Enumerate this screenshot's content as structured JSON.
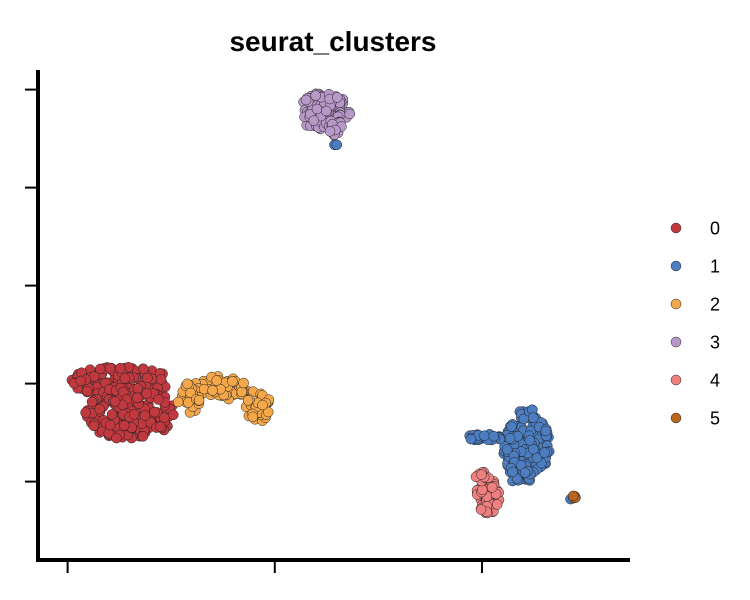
{
  "chart_data": {
    "type": "scatter",
    "title": "seurat_clusters",
    "xlabel": "",
    "ylabel": "",
    "xlim": [
      0,
      100
    ],
    "ylim": [
      0,
      100
    ],
    "x_ticks": [
      5,
      40,
      75
    ],
    "y_ticks": [
      16,
      36,
      56,
      76,
      96
    ],
    "tick_labels_shown": false,
    "grid": false,
    "legend_position": "right",
    "point_edge_color": "#222222",
    "series": [
      {
        "name": "0",
        "color": "#C1393F",
        "blobs": [
          {
            "cx": 14.0,
            "cy": 36.5,
            "rx": 8.5,
            "ry": 3.0,
            "n": 140
          },
          {
            "cx": 15.5,
            "cy": 30.0,
            "rx": 7.5,
            "ry": 5.5,
            "n": 170
          }
        ]
      },
      {
        "name": "1",
        "color": "#4C7DC0",
        "blobs": [
          {
            "cx": 82.5,
            "cy": 23.5,
            "rx": 4.0,
            "ry": 7.5,
            "n": 170
          },
          {
            "cx": 75.5,
            "cy": 25.0,
            "rx": 3.2,
            "ry": 0.7,
            "n": 28
          },
          {
            "cx": 81.5,
            "cy": 17.5,
            "rx": 2.3,
            "ry": 2.0,
            "n": 20
          },
          {
            "cx": 50.5,
            "cy": 85.0,
            "rx": 0.5,
            "ry": 0.5,
            "n": 2
          },
          {
            "cx": 90.0,
            "cy": 12.5,
            "rx": 0.3,
            "ry": 0.3,
            "n": 1
          }
        ]
      },
      {
        "name": "2",
        "color": "#F5A84A",
        "blobs": [
          {
            "cx": 30.5,
            "cy": 35.0,
            "rx": 5.0,
            "ry": 2.5,
            "n": 70
          },
          {
            "cx": 37.0,
            "cy": 31.5,
            "rx": 2.2,
            "ry": 3.5,
            "n": 35
          },
          {
            "cx": 25.5,
            "cy": 33.0,
            "rx": 2.0,
            "ry": 3.0,
            "n": 20
          }
        ]
      },
      {
        "name": "3",
        "color": "#B898C8",
        "blobs": [
          {
            "cx": 48.5,
            "cy": 91.5,
            "rx": 4.5,
            "ry": 4.0,
            "n": 110
          },
          {
            "cx": 50.0,
            "cy": 88.0,
            "rx": 1.5,
            "ry": 2.0,
            "n": 15
          }
        ]
      },
      {
        "name": "4",
        "color": "#F08080",
        "blobs": [
          {
            "cx": 76.0,
            "cy": 13.0,
            "rx": 2.0,
            "ry": 3.5,
            "n": 60
          },
          {
            "cx": 75.0,
            "cy": 17.0,
            "rx": 1.2,
            "ry": 1.2,
            "n": 10
          }
        ]
      },
      {
        "name": "5",
        "color": "#B8651F",
        "blobs": [
          {
            "cx": 90.5,
            "cy": 12.8,
            "rx": 0.35,
            "ry": 0.3,
            "n": 6
          }
        ]
      }
    ]
  }
}
